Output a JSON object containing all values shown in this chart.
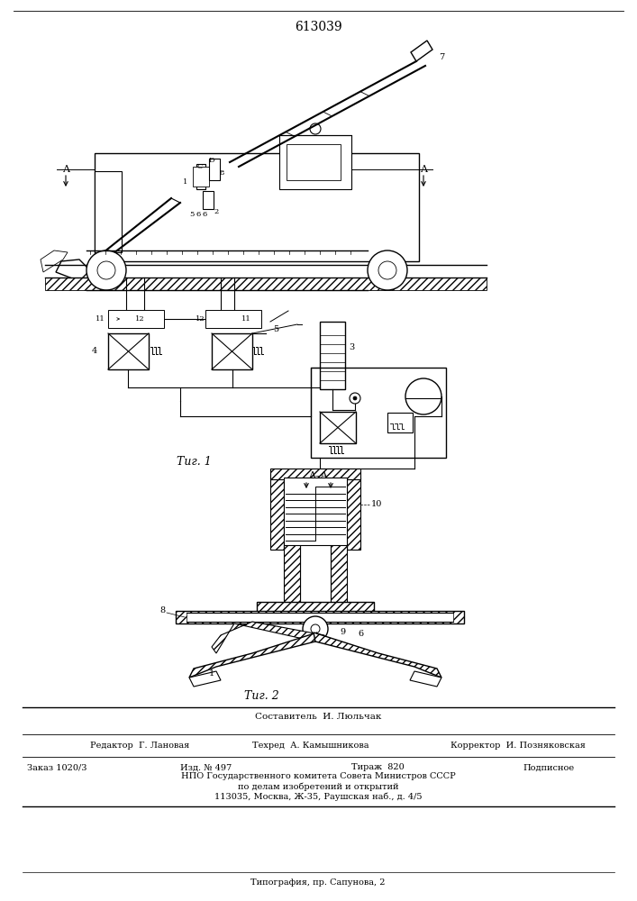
{
  "title": "613039",
  "fig1_caption": "Τиг. 1",
  "fig2_caption": "Τиг. 2",
  "section_label": "A–A",
  "footer_line1": "Составитель  И. Люльчак",
  "footer_line2_col1": "Редактор  Г. Лановая",
  "footer_line2_col2": "Техред  А. Камышникова",
  "footer_line2_col3": "Корректор  И. Позняковская",
  "footer_line3_col1": "Заказ 1020/3",
  "footer_line3_col2": "Изд. № 497",
  "footer_line3_col3": "Тираж  820",
  "footer_line3_col4": "Подписное",
  "footer_line4": "НПО Государственного комитета Совета Министров СССР",
  "footer_line5": "по делам изобретений и открытий",
  "footer_line6": "113035, Москва, Ж-35, Раушская наб., д. 4/5",
  "footer_line7": "Типография, пр. Сапунова, 2",
  "bg_color": "#ffffff",
  "line_color": "#000000"
}
